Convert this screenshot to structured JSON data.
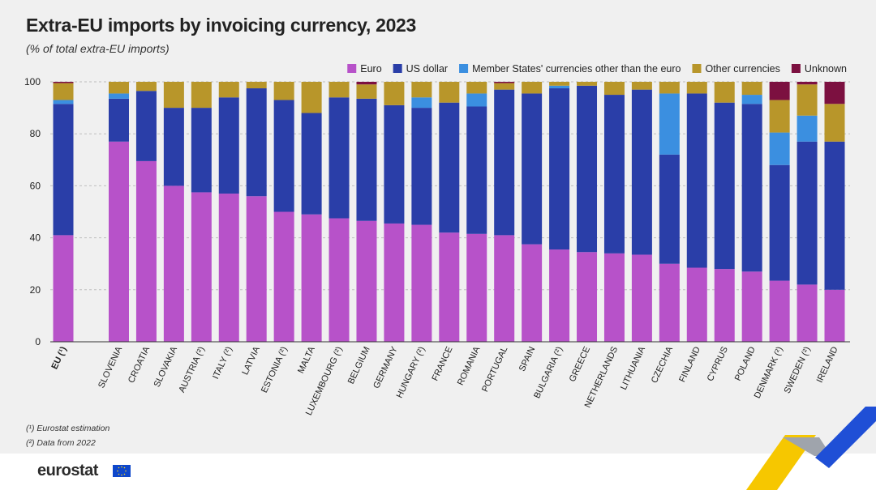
{
  "title": "Extra-EU imports by invoicing currency, 2023",
  "subtitle": "(% of total extra-EU imports)",
  "footnotes": [
    "(¹) Eurostat estimation",
    "(²) Data from 2022"
  ],
  "logo": "eurostat",
  "chart_data": {
    "type": "bar",
    "stacked": true,
    "categories": [
      "EU (¹)",
      "SLOVENIA",
      "CROATIA",
      "SLOVAKIA",
      "AUSTRIA (²)",
      "ITALY (²)",
      "LATVIA",
      "ESTONIA (²)",
      "MALTA",
      "LUXEMBOURG (²)",
      "BELGIUM",
      "GERMANY",
      "HUNGARY (²)",
      "FRANCE",
      "ROMANIA",
      "PORTUGAL",
      "SPAIN",
      "BULGARIA (²)",
      "GREECE",
      "NETHERLANDS",
      "LITHUANIA",
      "CZECHIA",
      "FINLAND",
      "CYPRUS",
      "POLAND",
      "DENMARK (²)",
      "SWEDEN (²)",
      "IRELAND"
    ],
    "series": [
      {
        "name": "Euro",
        "color": "#b752c9",
        "values": [
          41,
          77,
          69.5,
          60,
          57.5,
          57,
          56,
          50,
          49,
          47.5,
          46.5,
          45.5,
          45,
          42,
          41.5,
          41,
          37.5,
          35.5,
          34.5,
          34,
          33.5,
          30,
          28.5,
          28,
          27,
          23.5,
          22,
          20
        ]
      },
      {
        "name": "US dollar",
        "color": "#2a3ea8",
        "values": [
          50.5,
          16.5,
          27,
          30,
          32.5,
          37,
          41.5,
          43,
          39,
          46.5,
          47,
          45.5,
          45,
          50,
          49,
          56,
          58,
          62,
          64,
          61,
          63.5,
          42,
          67,
          64,
          64.5,
          44.5,
          55,
          57
        ]
      },
      {
        "name": "Member States' currencies other than the euro",
        "color": "#3b8fe0",
        "values": [
          1.5,
          2,
          0,
          0,
          0,
          0,
          0,
          0,
          0,
          0,
          0,
          0,
          4,
          0,
          5,
          0,
          0,
          1,
          0,
          0,
          0,
          23.5,
          0,
          0,
          3.5,
          12.5,
          10,
          0
        ]
      },
      {
        "name": "Other currencies",
        "color": "#b8962a",
        "values": [
          6.5,
          4.5,
          3.5,
          10,
          10,
          6,
          2.5,
          7,
          12,
          6,
          5.5,
          9,
          6,
          8,
          4.5,
          2.5,
          4.5,
          1.5,
          1.5,
          5,
          3,
          4.5,
          4.5,
          8,
          5,
          12.5,
          12,
          14.5
        ]
      },
      {
        "name": "Unknown",
        "color": "#7c1040",
        "values": [
          0.5,
          0,
          0,
          0,
          0,
          0,
          0,
          0,
          0,
          0,
          1,
          0,
          0,
          0,
          0,
          0.5,
          0,
          0,
          0,
          0,
          0,
          0,
          0,
          0,
          0,
          7,
          1,
          8.5
        ]
      }
    ],
    "ylim": [
      0,
      100
    ],
    "yticks": [
      0,
      20,
      40,
      60,
      80,
      100
    ],
    "grid": true,
    "legend": "top-right"
  }
}
